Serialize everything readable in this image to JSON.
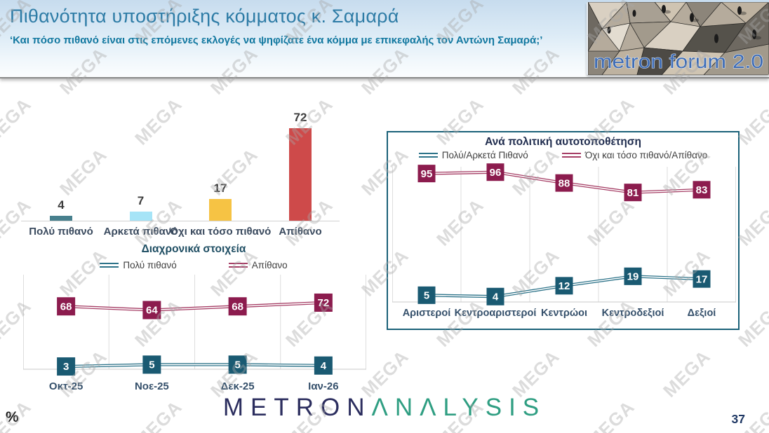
{
  "header": {
    "title": "Πιθανότητα υποστήριξης κόμματος κ. Σαμαρά",
    "subtitle": "‘Και πόσο πιθανό είναι στις επόμενες εκλογές να ψηφίζατε ένα κόμμα με επικεφαλής τον Αντώνη Σαμαρά;’"
  },
  "logo_badge": {
    "text": "metron forum 2.0"
  },
  "watermark": {
    "text": "MEGA"
  },
  "footer": {
    "unit_label": "%",
    "brand_first": "METRON",
    "brand_second": "ΛNΛLYSIS",
    "page_number": "37"
  },
  "colors": {
    "header_title": "#2E7CA6",
    "header_subtitle": "#1278A0",
    "teal_series": "#1A5A72",
    "maroon_series": "#8C1C4E",
    "box_border": "#1A6178",
    "brand_navy": "#2B2D5E",
    "brand_teal": "#2F9E82",
    "badge_text": "#3E6CB5"
  },
  "chart_data": [
    {
      "id": "likelihood-bars",
      "type": "bar",
      "title": "",
      "categories": [
        "Πολύ πιθανό",
        "Αρκετά πιθανό",
        "Όχι και τόσο πιθανό",
        "Απίθανο"
      ],
      "values": [
        4,
        7,
        17,
        72
      ],
      "bar_colors": [
        "#47808D",
        "#A6E4F7",
        "#F6C344",
        "#CE4A4A"
      ],
      "ylim": [
        0,
        100
      ],
      "grid": false,
      "value_labels": true
    },
    {
      "id": "trend-lines",
      "type": "line",
      "title": "Διαχρονικά στοιχεία",
      "categories": [
        "Οκτ-25",
        "Νοε-25",
        "Δεκ-25",
        "Ιαν-26"
      ],
      "series": [
        {
          "name": "Πολύ πιθανό",
          "color": "#1A5A72",
          "line_color": "#2D7389",
          "values": [
            3,
            5,
            5,
            4
          ]
        },
        {
          "name": "Απίθανο",
          "color": "#8C1C4E",
          "line_color": "#A63F66",
          "values": [
            68,
            64,
            68,
            72
          ]
        }
      ],
      "ylim": [
        0,
        100
      ],
      "grid": "vertical",
      "legend_position": "top",
      "value_labels": true
    },
    {
      "id": "by-political-position",
      "type": "line",
      "title": "Ανά πολιτική αυτοτοποθέτηση",
      "categories": [
        "Αριστεροί",
        "Κεντροαριστεροί",
        "Κεντρώοι",
        "Κεντροδεξιοί",
        "Δεξιοί"
      ],
      "series": [
        {
          "name": "Πολύ/Αρκετά Πιθανό",
          "color": "#1A5A72",
          "line_color": "#2D7389",
          "values": [
            5,
            4,
            12,
            19,
            17
          ]
        },
        {
          "name": "Όχι και τόσο πιθανό/Απίθανο",
          "color": "#8C1C4E",
          "line_color": "#A63F66",
          "values": [
            95,
            96,
            88,
            81,
            83
          ]
        }
      ],
      "ylim": [
        0,
        100
      ],
      "grid": "vertical",
      "legend_position": "top",
      "value_labels": true
    }
  ]
}
